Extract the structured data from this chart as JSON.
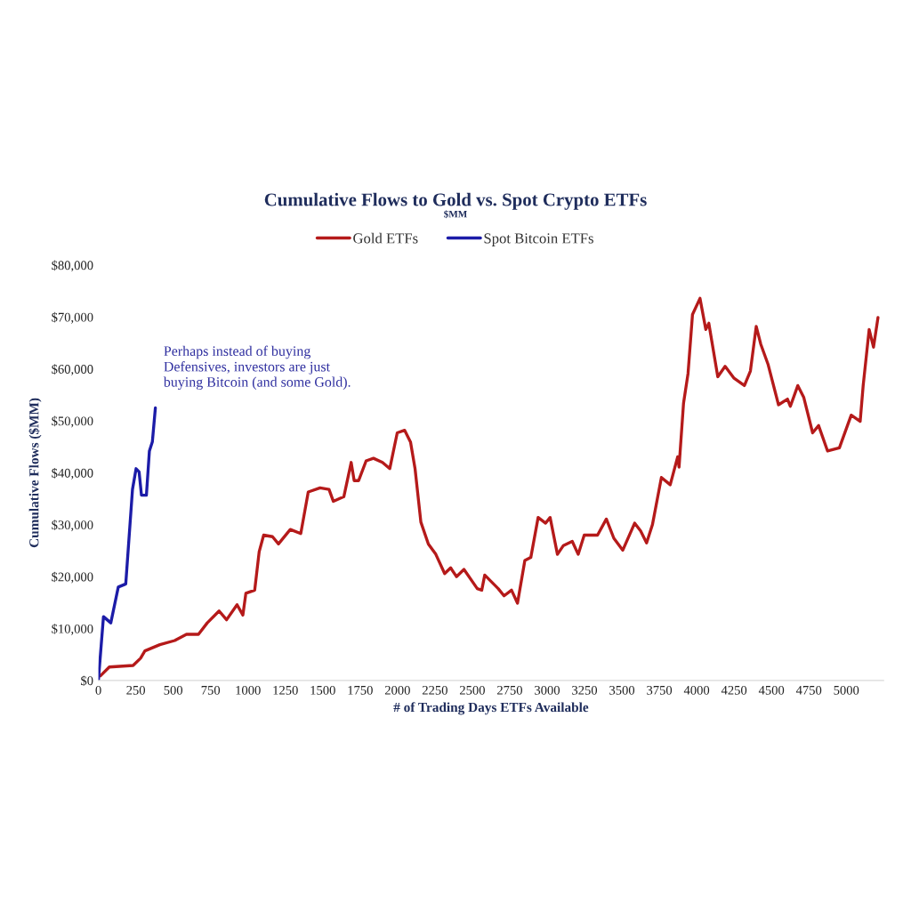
{
  "chart_data": {
    "type": "line",
    "title": "Cumulative Flows to Gold vs. Spot Crypto ETFs",
    "subtitle": "$MM",
    "xlabel": "# of Trading Days ETFs Available",
    "ylabel": "Cumulative Flows ($MM)",
    "annotations": [
      "Perhaps instead of buying\nDefensives, investors are just\nbuying Bitcoin (and some Gold)."
    ],
    "legend": "top",
    "grid": false,
    "marker": "none",
    "line_style": "solid",
    "xlim": [
      0,
      5250
    ],
    "xticks": [
      0,
      250,
      500,
      750,
      1000,
      1250,
      1500,
      1750,
      2000,
      2250,
      2500,
      2750,
      3000,
      3250,
      3500,
      3750,
      4000,
      4250,
      4500,
      4750,
      5000
    ],
    "ylim": [
      0,
      80000
    ],
    "yticks": [
      {
        "value": 0,
        "label": "$0"
      },
      {
        "value": 10000,
        "label": "$10,000"
      },
      {
        "value": 20000,
        "label": "$20,000"
      },
      {
        "value": 30000,
        "label": "$30,000"
      },
      {
        "value": 40000,
        "label": "$40,000"
      },
      {
        "value": 50000,
        "label": "$50,000"
      },
      {
        "value": 60000,
        "label": "$60,000"
      },
      {
        "value": 70000,
        "label": "$70,000"
      },
      {
        "value": 80000,
        "label": "$80,000"
      }
    ],
    "series": [
      {
        "name": "Gold ETFs",
        "color": "#b51a1a",
        "x": [
          14,
          73,
          232,
          282,
          311,
          411,
          510,
          589,
          669,
          728,
          807,
          857,
          927,
          966,
          986,
          1045,
          1075,
          1105,
          1164,
          1204,
          1283,
          1353,
          1403,
          1482,
          1542,
          1571,
          1641,
          1690,
          1710,
          1740,
          1790,
          1839,
          1899,
          1948,
          1998,
          2047,
          2087,
          2117,
          2156,
          2206,
          2256,
          2315,
          2355,
          2394,
          2444,
          2533,
          2563,
          2583,
          2673,
          2712,
          2762,
          2802,
          2851,
          2891,
          2940,
          2990,
          3020,
          3069,
          3109,
          3168,
          3208,
          3248,
          3337,
          3396,
          3446,
          3506,
          3585,
          3625,
          3665,
          3704,
          3764,
          3823,
          3873,
          3882,
          3912,
          3942,
          3972,
          4022,
          4061,
          4081,
          4141,
          4190,
          4250,
          4319,
          4359,
          4398,
          4428,
          4478,
          4547,
          4607,
          4626,
          4676,
          4716,
          4775,
          4815,
          4875,
          4954,
          5033,
          5093,
          5113,
          5153,
          5182,
          5212
        ],
        "values": [
          900,
          2600,
          2900,
          4300,
          5700,
          6900,
          7700,
          8900,
          8900,
          11100,
          13400,
          11700,
          14600,
          12600,
          16800,
          17400,
          24800,
          28000,
          27700,
          26300,
          29100,
          28300,
          36300,
          37100,
          36800,
          34500,
          35400,
          42000,
          38500,
          38500,
          42300,
          42800,
          42000,
          40800,
          47700,
          48200,
          45900,
          40800,
          30500,
          26300,
          24300,
          20600,
          21700,
          20000,
          21400,
          17700,
          17400,
          20300,
          17700,
          16300,
          17400,
          14900,
          23100,
          23700,
          31400,
          30300,
          31400,
          24300,
          26000,
          26800,
          24300,
          28000,
          28000,
          31100,
          27400,
          25100,
          30300,
          28800,
          26500,
          30000,
          39100,
          37700,
          43100,
          41100,
          53400,
          59100,
          70500,
          73600,
          67600,
          68800,
          58500,
          60500,
          58200,
          56800,
          59600,
          68200,
          64800,
          60800,
          53100,
          54200,
          52800,
          56800,
          54500,
          47700,
          49100,
          44200,
          44800,
          51100,
          49900,
          56800,
          67600,
          64200,
          69900
        ]
      },
      {
        "name": "Spot Bitcoin ETFs",
        "color": "#1c1ca8",
        "x": [
          0,
          34,
          83,
          133,
          183,
          228,
          252,
          272,
          288,
          321,
          341,
          361,
          381
        ],
        "values": [
          0,
          12300,
          11100,
          18000,
          18600,
          36800,
          40800,
          40200,
          35700,
          35700,
          44200,
          46000,
          52500
        ]
      }
    ]
  }
}
